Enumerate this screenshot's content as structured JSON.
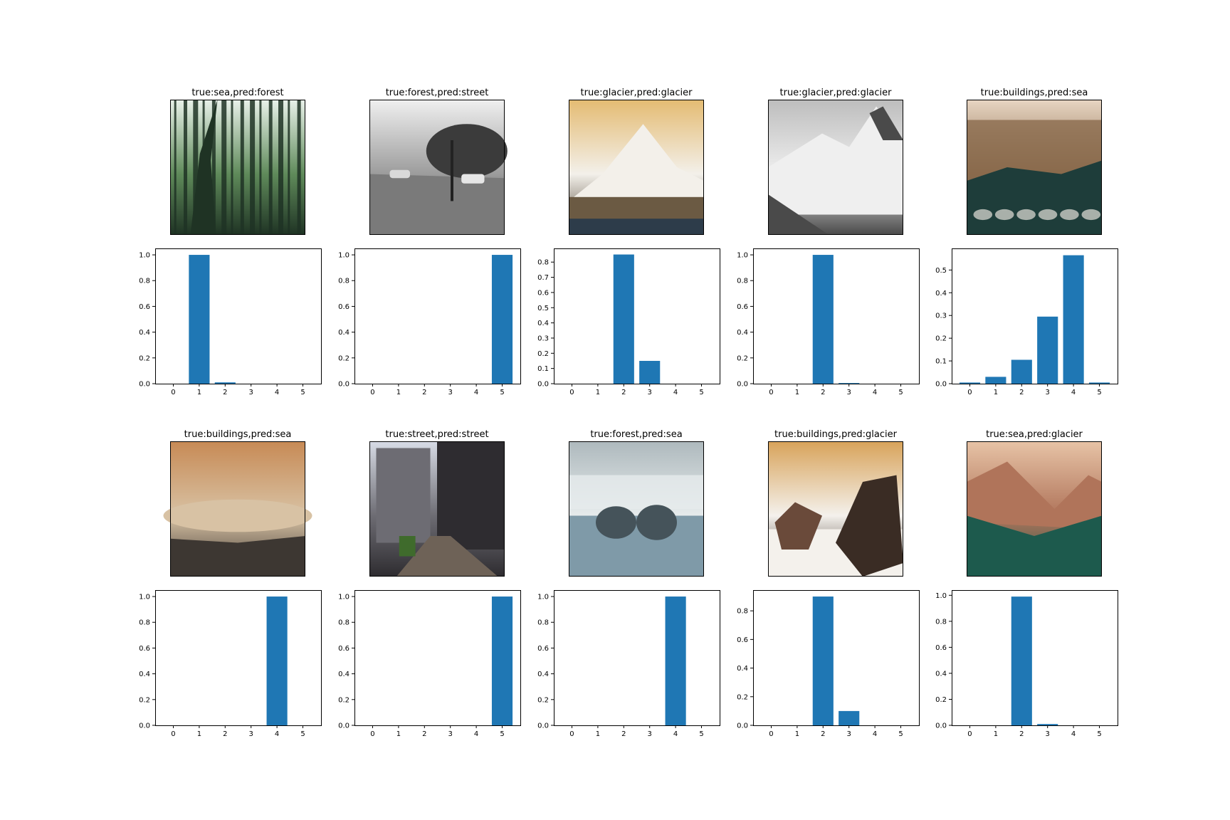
{
  "figure": {
    "background": "#ffffff",
    "bar_color": "#1f77b4"
  },
  "panels": [
    {
      "title": "true:sea,pred:forest",
      "image": {
        "subject": "forest",
        "palette": [
          "#e9f2ea",
          "#5f8a5a",
          "#1f3324"
        ]
      },
      "chart_data": {
        "type": "bar",
        "categories": [
          "0",
          "1",
          "2",
          "3",
          "4",
          "5"
        ],
        "values": [
          0,
          1.0,
          0.01,
          0,
          0,
          0
        ],
        "ylim": [
          0,
          1.05
        ],
        "yticks": [
          "0.0",
          "0.2",
          "0.4",
          "0.6",
          "0.8",
          "1.0"
        ]
      }
    },
    {
      "title": "true:forest,pred:street",
      "image": {
        "subject": "street",
        "palette": [
          "#f0f0f0",
          "#9c9c9c",
          "#3b3b3b"
        ]
      },
      "chart_data": {
        "type": "bar",
        "categories": [
          "0",
          "1",
          "2",
          "3",
          "4",
          "5"
        ],
        "values": [
          0,
          0,
          0,
          0,
          0,
          1.0
        ],
        "ylim": [
          0,
          1.05
        ],
        "yticks": [
          "0.0",
          "0.2",
          "0.4",
          "0.6",
          "0.8",
          "1.0"
        ]
      }
    },
    {
      "title": "true:glacier,pred:glacier",
      "image": {
        "subject": "mountain",
        "palette": [
          "#e4bb72",
          "#f3f0ea",
          "#4b4030"
        ]
      },
      "chart_data": {
        "type": "bar",
        "categories": [
          "0",
          "1",
          "2",
          "3",
          "4",
          "5"
        ],
        "values": [
          0,
          0,
          0.85,
          0.15,
          0,
          0
        ],
        "ylim": [
          0,
          0.89
        ],
        "yticks": [
          "0.0",
          "0.1",
          "0.2",
          "0.3",
          "0.4",
          "0.5",
          "0.6",
          "0.7",
          "0.8"
        ]
      }
    },
    {
      "title": "true:glacier,pred:glacier",
      "image": {
        "subject": "glacier",
        "palette": [
          "#bdbdbd",
          "#efefef",
          "#4a4a4a"
        ]
      },
      "chart_data": {
        "type": "bar",
        "categories": [
          "0",
          "1",
          "2",
          "3",
          "4",
          "5"
        ],
        "values": [
          0,
          0,
          1.0,
          0.005,
          0,
          0
        ],
        "ylim": [
          0,
          1.05
        ],
        "yticks": [
          "0.0",
          "0.2",
          "0.4",
          "0.6",
          "0.8",
          "1.0"
        ]
      }
    },
    {
      "title": "true:buildings,pred:sea",
      "image": {
        "subject": "valley",
        "palette": [
          "#e8d6c3",
          "#8a6a4c",
          "#1e3d3a"
        ]
      },
      "chart_data": {
        "type": "bar",
        "categories": [
          "0",
          "1",
          "2",
          "3",
          "4",
          "5"
        ],
        "values": [
          0.005,
          0.03,
          0.105,
          0.295,
          0.565,
          0.005
        ],
        "ylim": [
          0,
          0.595
        ],
        "yticks": [
          "0.0",
          "0.1",
          "0.2",
          "0.3",
          "0.4",
          "0.5"
        ]
      }
    },
    {
      "title": "true:buildings,pred:sea",
      "image": {
        "subject": "coast",
        "palette": [
          "#c78a55",
          "#d8c2a4",
          "#3d3732"
        ]
      },
      "chart_data": {
        "type": "bar",
        "categories": [
          "0",
          "1",
          "2",
          "3",
          "4",
          "5"
        ],
        "values": [
          0,
          0,
          0,
          0,
          1.0,
          0
        ],
        "ylim": [
          0,
          1.05
        ],
        "yticks": [
          "0.0",
          "0.2",
          "0.4",
          "0.6",
          "0.8",
          "1.0"
        ]
      }
    },
    {
      "title": "true:street,pred:street",
      "image": {
        "subject": "alley",
        "palette": [
          "#d8dce6",
          "#6d6c73",
          "#2e2c30"
        ]
      },
      "chart_data": {
        "type": "bar",
        "categories": [
          "0",
          "1",
          "2",
          "3",
          "4",
          "5"
        ],
        "values": [
          0,
          0,
          0,
          0,
          0,
          1.0
        ],
        "ylim": [
          0,
          1.05
        ],
        "yticks": [
          "0.0",
          "0.2",
          "0.4",
          "0.6",
          "0.8",
          "1.0"
        ]
      }
    },
    {
      "title": "true:forest,pred:sea",
      "image": {
        "subject": "seals",
        "palette": [
          "#aeb9bd",
          "#e6ebec",
          "#45535a"
        ]
      },
      "chart_data": {
        "type": "bar",
        "categories": [
          "0",
          "1",
          "2",
          "3",
          "4",
          "5"
        ],
        "values": [
          0,
          0,
          0,
          0,
          1.0,
          0
        ],
        "ylim": [
          0,
          1.05
        ],
        "yticks": [
          "0.0",
          "0.2",
          "0.4",
          "0.6",
          "0.8",
          "1.0"
        ]
      }
    },
    {
      "title": "true:buildings,pred:glacier",
      "image": {
        "subject": "rocks",
        "palette": [
          "#d8a35a",
          "#f4f1ec",
          "#3a2c24"
        ]
      },
      "chart_data": {
        "type": "bar",
        "categories": [
          "0",
          "1",
          "2",
          "3",
          "4",
          "5"
        ],
        "values": [
          0,
          0,
          0.9,
          0.1,
          0,
          0
        ],
        "ylim": [
          0,
          0.945
        ],
        "yticks": [
          "0.0",
          "0.2",
          "0.4",
          "0.6",
          "0.8"
        ]
      }
    },
    {
      "title": "true:sea,pred:glacier",
      "image": {
        "subject": "valley-forest",
        "palette": [
          "#e7c3a6",
          "#b0745a",
          "#1d5a4d"
        ]
      },
      "chart_data": {
        "type": "bar",
        "categories": [
          "0",
          "1",
          "2",
          "3",
          "4",
          "5"
        ],
        "values": [
          0,
          0,
          0.99,
          0.01,
          0,
          0
        ],
        "ylim": [
          0,
          1.04
        ],
        "yticks": [
          "0.0",
          "0.2",
          "0.4",
          "0.6",
          "0.8",
          "1.0"
        ]
      }
    }
  ]
}
